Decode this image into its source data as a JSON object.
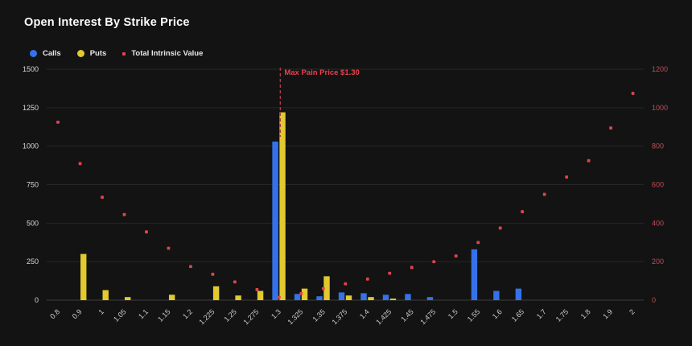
{
  "title": "Open Interest By Strike Price",
  "legend": [
    {
      "label": "Calls",
      "color": "#3572e9",
      "shape": "circle"
    },
    {
      "label": "Puts",
      "color": "#e2c92e",
      "shape": "circle"
    },
    {
      "label": "Total Intrinsic Value",
      "color": "#e2434e",
      "shape": "square"
    }
  ],
  "annotation": {
    "text": "Max Pain Price $1.30",
    "category": "1.3",
    "line_color": "#b13a45",
    "text_color": "#e8414e"
  },
  "colors": {
    "background": "#131313",
    "grid": "#272727",
    "zero_line": "#3e3e3e",
    "left_tick_text": "#d8d8d8",
    "x_tick_text": "#cfcfcf",
    "right_tick_text": "#bf4e59",
    "calls": "#3572e9",
    "puts": "#e2c92e",
    "intrinsic": "#e2434e"
  },
  "chart_data": {
    "type": "bar",
    "title": "Open Interest By Strike Price",
    "xlabel": "",
    "ylabel_left": "",
    "ylabel_right": "",
    "grid": true,
    "legend_position": "top-left",
    "categories": [
      "0.8",
      "0.9",
      "1",
      "1.05",
      "1.1",
      "1.15",
      "1.2",
      "1.225",
      "1.25",
      "1.275",
      "1.3",
      "1.325",
      "1.35",
      "1.375",
      "1.4",
      "1.425",
      "1.45",
      "1.475",
      "1.5",
      "1.55",
      "1.6",
      "1.65",
      "1.7",
      "1.75",
      "1.8",
      "1.9",
      "2"
    ],
    "left_axis": {
      "min": 0,
      "max": 1500,
      "ticks": [
        0,
        250,
        500,
        750,
        1000,
        1250,
        1500
      ]
    },
    "right_axis": {
      "min": 0,
      "max": 1200,
      "ticks": [
        0,
        200,
        400,
        600,
        800,
        1000,
        1200
      ]
    },
    "series": [
      {
        "name": "Calls",
        "render": "bar",
        "axis": "left",
        "color": "#3572e9",
        "values": [
          0,
          0,
          0,
          0,
          0,
          0,
          0,
          0,
          0,
          0,
          1030,
          40,
          25,
          50,
          45,
          35,
          40,
          20,
          0,
          330,
          60,
          75,
          0,
          0,
          0,
          0,
          0
        ]
      },
      {
        "name": "Puts",
        "render": "bar",
        "axis": "left",
        "color": "#e2c92e",
        "values": [
          0,
          300,
          65,
          20,
          0,
          35,
          0,
          90,
          30,
          60,
          1220,
          75,
          155,
          30,
          20,
          10,
          0,
          0,
          0,
          0,
          0,
          0,
          0,
          0,
          0,
          0,
          0
        ]
      },
      {
        "name": "Total Intrinsic Value",
        "render": "scatter",
        "axis": "right",
        "color": "#e2434e",
        "values": [
          925,
          710,
          535,
          445,
          355,
          270,
          175,
          135,
          95,
          55,
          15,
          35,
          60,
          85,
          110,
          140,
          170,
          200,
          230,
          300,
          375,
          460,
          550,
          640,
          725,
          895,
          1075
        ]
      }
    ],
    "max_pain": {
      "category": "1.3",
      "label": "Max Pain Price $1.30"
    }
  }
}
